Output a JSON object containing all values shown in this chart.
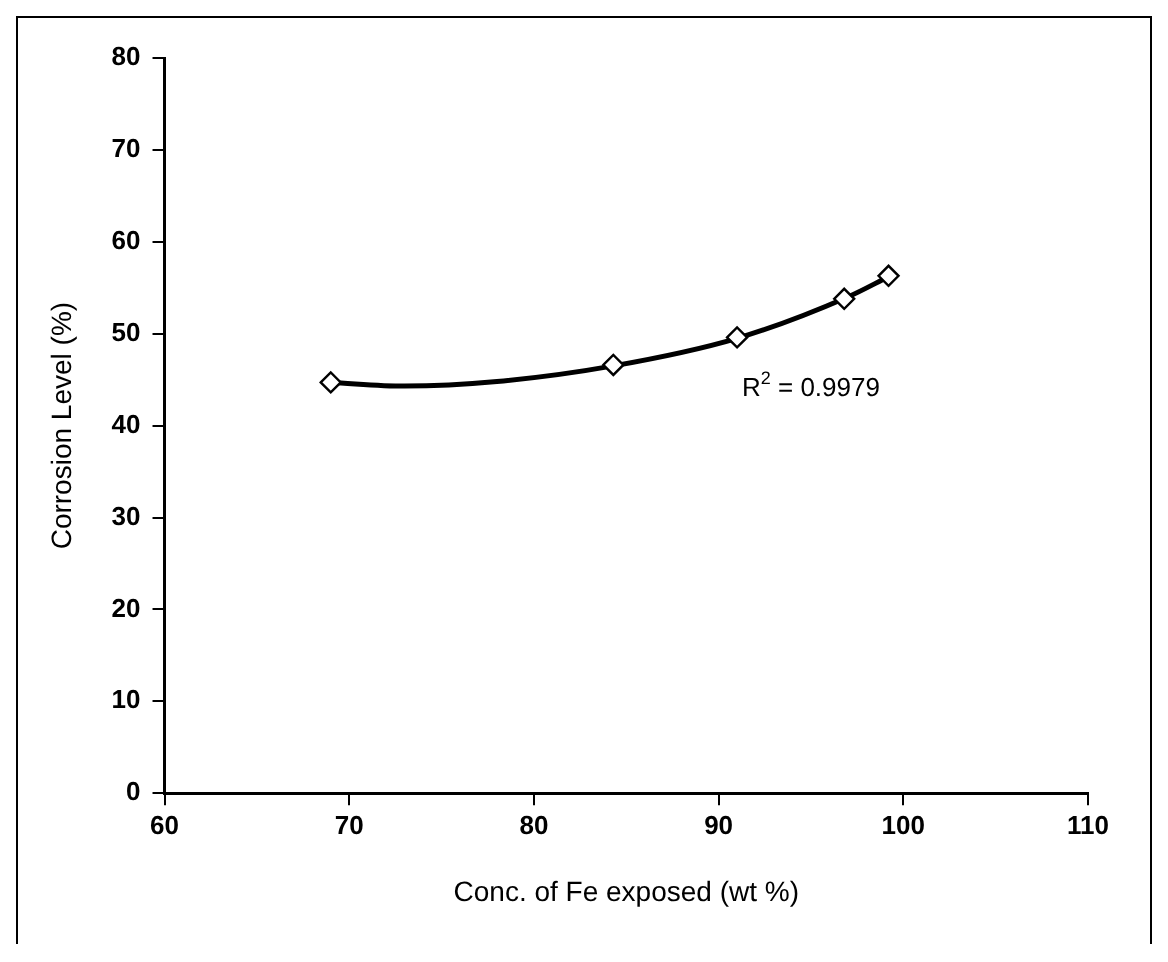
{
  "chart_data": {
    "type": "scatter",
    "xlabel": "Conc. of Fe exposed (wt %)",
    "ylabel": "Corrosion Level (%)",
    "xlim": [
      60,
      110
    ],
    "xticks": [
      60,
      70,
      80,
      90,
      100,
      110
    ],
    "ylim": [
      0,
      80
    ],
    "yticks": [
      0,
      10,
      20,
      30,
      40,
      50,
      60,
      70,
      80
    ],
    "grid": false,
    "legend": false,
    "series": [
      {
        "color": "#000000",
        "marker": "diamond",
        "x": [
          69,
          84.3,
          91,
          96.8,
          99.2
        ],
        "values": [
          44.7,
          46.6,
          49.6,
          53.8,
          56.3
        ]
      },
      {
        "type": "line",
        "color": "#000000",
        "marker": "none",
        "x": [
          69,
          73,
          78,
          84.3,
          91,
          97,
          99.2
        ],
        "values": [
          44.7,
          44.3,
          44.8,
          46.5,
          49.5,
          54,
          56.2
        ]
      }
    ],
    "annotations": [
      "R$^{2}$ = 0.9979"
    ]
  }
}
